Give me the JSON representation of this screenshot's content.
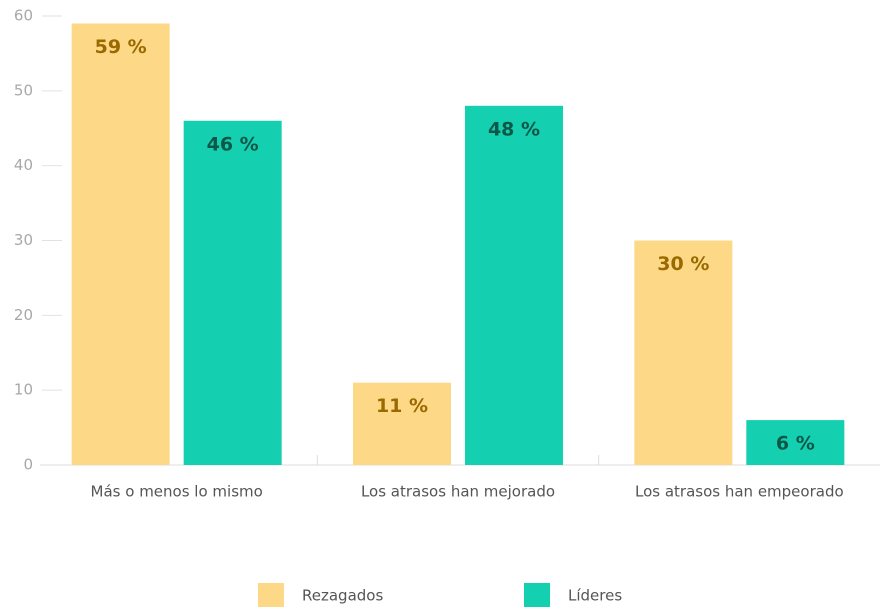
{
  "chart_data": {
    "type": "bar",
    "categories": [
      "Más o menos lo mismo",
      "Los atrasos han mejorado",
      "Los atrasos han empeorado"
    ],
    "series": [
      {
        "name": "Rezagados",
        "color": "#fdd886",
        "label_color": "#9a6a00",
        "values": [
          59,
          11,
          30
        ],
        "value_labels": [
          "59 %",
          "11 %",
          "30 %"
        ]
      },
      {
        "name": "Líderes",
        "color": "#14cfb0",
        "label_color": "#0d5648",
        "values": [
          46,
          48,
          6
        ],
        "value_labels": [
          "46 %",
          "48 %",
          "6 %"
        ]
      }
    ],
    "ylim": [
      0,
      60
    ],
    "yticks": [
      0,
      10,
      20,
      30,
      40,
      50,
      60
    ],
    "grid": false,
    "legend": "bottom"
  }
}
